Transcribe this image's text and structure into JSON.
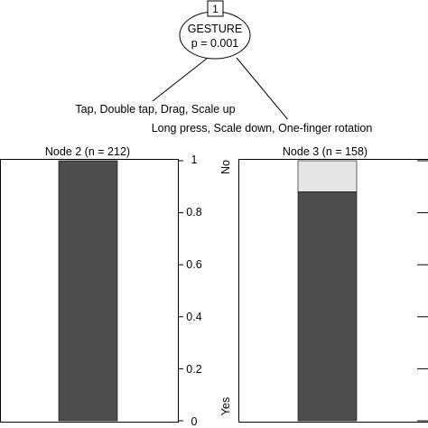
{
  "root": {
    "id": "1",
    "variable": "GESTURE",
    "p_label": "p = 0.001"
  },
  "edges": {
    "left_label": "Tap, Double tap, Drag, Scale up",
    "right_label": "Long press, Scale down, One-finger rotation"
  },
  "nodes": [
    {
      "title": "Node 2 (n = 212)",
      "proportion_yes": 1.0
    },
    {
      "title": "Node 3 (n = 158)",
      "proportion_yes": 0.88
    }
  ],
  "axis": {
    "ticks": [
      "0",
      "0.2",
      "0.4",
      "0.6",
      "0.8",
      "1"
    ],
    "label_top": "No",
    "label_bottom": "Yes"
  },
  "colors": {
    "yes_fill": "#4d4d4d",
    "no_fill": "#e6e6e6",
    "stroke": "#000000"
  }
}
